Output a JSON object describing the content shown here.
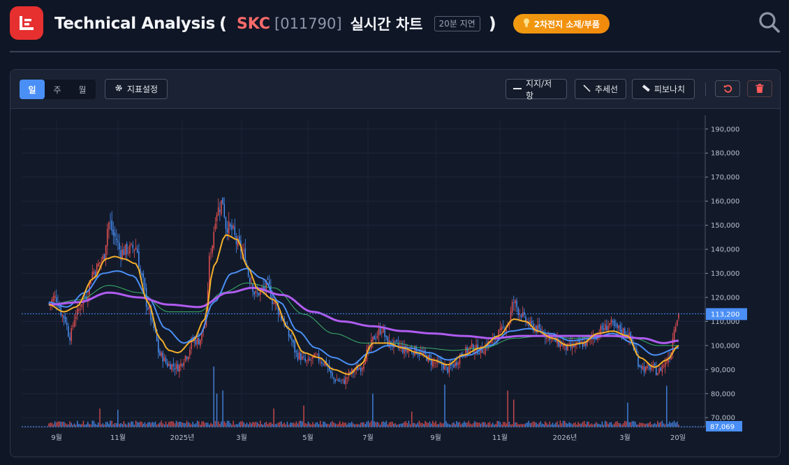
{
  "header": {
    "title": "Technical Analysis",
    "paren_open": "(",
    "ticker": "SKC",
    "code": "[011790]",
    "realtime_label": "실시간 차트",
    "delay_badge": "20분 지연",
    "paren_close": ")",
    "theme_badge": "2차전지 소재/부품",
    "icons": {
      "logo": "chart-logo-icon",
      "theme": "lightbulb-icon",
      "search": "search-icon"
    },
    "colors": {
      "logo": "#e63030",
      "ticker": "#ff6b6b",
      "badge": "#f09a10"
    }
  },
  "toolbar": {
    "periods": [
      {
        "label": "일",
        "active": true
      },
      {
        "label": "주",
        "active": false
      },
      {
        "label": "월",
        "active": false
      }
    ],
    "indicator_settings": "지표설정",
    "support_resistance": "지지/저항",
    "trendline": "추세선",
    "fibonacci": "피보나치",
    "icons": {
      "settings": "gear-icon",
      "support": "horizontal-line-icon",
      "trend": "diagonal-line-icon",
      "fib": "ruler-icon",
      "reset": "undo-icon",
      "delete": "trash-icon"
    }
  },
  "chart_data": {
    "type": "candlestick",
    "y_ticks": [
      "190,000",
      "180,000",
      "170,000",
      "160,000",
      "150,000",
      "140,000",
      "130,000",
      "120,000",
      "110,000",
      "100,000",
      "90,000",
      "80,000",
      "70,000"
    ],
    "ylim": [
      66000,
      194000
    ],
    "x_ticks": [
      "9월",
      "11월",
      "2025년",
      "3월",
      "5월",
      "7월",
      "9월",
      "11월",
      "2026년",
      "3월",
      "20일"
    ],
    "current_price_label": "113,200",
    "current_price": 113200,
    "volume_label": "87,069",
    "price_line_color": "#4a8ff5",
    "up_color": "#e55050",
    "down_color": "#4a8ff5",
    "keypoints": [
      [
        0,
        117500
      ],
      [
        4,
        120000
      ],
      [
        10,
        112000
      ],
      [
        14,
        104000
      ],
      [
        18,
        113000
      ],
      [
        24,
        120000
      ],
      [
        30,
        131000
      ],
      [
        36,
        136000
      ],
      [
        40,
        151000
      ],
      [
        44,
        145000
      ],
      [
        48,
        139000
      ],
      [
        54,
        140000
      ],
      [
        58,
        141000
      ],
      [
        62,
        128000
      ],
      [
        66,
        116000
      ],
      [
        70,
        107000
      ],
      [
        74,
        96000
      ],
      [
        80,
        92000
      ],
      [
        86,
        91000
      ],
      [
        92,
        96000
      ],
      [
        96,
        102000
      ],
      [
        100,
        102000
      ],
      [
        104,
        108000
      ],
      [
        108,
        140000
      ],
      [
        112,
        156000
      ],
      [
        116,
        160000
      ],
      [
        118,
        150000
      ],
      [
        122,
        148000
      ],
      [
        126,
        142000
      ],
      [
        130,
        138000
      ],
      [
        134,
        128000
      ],
      [
        138,
        121000
      ],
      [
        142,
        123000
      ],
      [
        146,
        125000
      ],
      [
        150,
        118000
      ],
      [
        156,
        111000
      ],
      [
        160,
        104000
      ],
      [
        166,
        96000
      ],
      [
        172,
        93000
      ],
      [
        178,
        95000
      ],
      [
        184,
        93000
      ],
      [
        190,
        86000
      ],
      [
        196,
        85000
      ],
      [
        202,
        89000
      ],
      [
        208,
        91000
      ],
      [
        212,
        97000
      ],
      [
        218,
        104000
      ],
      [
        222,
        107000
      ],
      [
        226,
        101000
      ],
      [
        232,
        100000
      ],
      [
        238,
        98000
      ],
      [
        244,
        98000
      ],
      [
        250,
        96000
      ],
      [
        256,
        93000
      ],
      [
        262,
        92000
      ],
      [
        266,
        90000
      ],
      [
        270,
        92000
      ],
      [
        276,
        97000
      ],
      [
        282,
        99000
      ],
      [
        288,
        98000
      ],
      [
        294,
        101000
      ],
      [
        300,
        105000
      ],
      [
        306,
        109000
      ],
      [
        310,
        118000
      ],
      [
        314,
        114000
      ],
      [
        318,
        110000
      ],
      [
        322,
        108000
      ],
      [
        328,
        106000
      ],
      [
        334,
        104000
      ],
      [
        340,
        101000
      ],
      [
        346,
        99000
      ],
      [
        352,
        100000
      ],
      [
        358,
        101000
      ],
      [
        364,
        104000
      ],
      [
        370,
        107000
      ],
      [
        374,
        109000
      ],
      [
        378,
        107000
      ],
      [
        384,
        106000
      ],
      [
        388,
        103000
      ],
      [
        390,
        99000
      ],
      [
        394,
        92000
      ],
      [
        398,
        90000
      ],
      [
        402,
        91000
      ],
      [
        406,
        89000
      ],
      [
        410,
        92000
      ],
      [
        414,
        96000
      ],
      [
        418,
        110000
      ],
      [
        420,
        113200
      ]
    ],
    "ma5": [
      [
        0,
        117000
      ],
      [
        10,
        114000
      ],
      [
        18,
        116000
      ],
      [
        30,
        128000
      ],
      [
        38,
        136000
      ],
      [
        44,
        137000
      ],
      [
        50,
        136000
      ],
      [
        58,
        134000
      ],
      [
        66,
        118000
      ],
      [
        74,
        103000
      ],
      [
        80,
        98000
      ],
      [
        86,
        97000
      ],
      [
        96,
        102000
      ],
      [
        104,
        111000
      ],
      [
        110,
        133000
      ],
      [
        118,
        146000
      ],
      [
        126,
        144000
      ],
      [
        132,
        133000
      ],
      [
        140,
        123000
      ],
      [
        150,
        119000
      ],
      [
        160,
        107000
      ],
      [
        170,
        97000
      ],
      [
        180,
        95000
      ],
      [
        190,
        90000
      ],
      [
        200,
        88000
      ],
      [
        208,
        92000
      ],
      [
        216,
        101000
      ],
      [
        226,
        101000
      ],
      [
        236,
        99000
      ],
      [
        246,
        97000
      ],
      [
        256,
        94000
      ],
      [
        266,
        92000
      ],
      [
        276,
        96000
      ],
      [
        288,
        99000
      ],
      [
        300,
        104000
      ],
      [
        310,
        111000
      ],
      [
        318,
        110000
      ],
      [
        326,
        106000
      ],
      [
        336,
        103000
      ],
      [
        346,
        100000
      ],
      [
        356,
        101000
      ],
      [
        366,
        105000
      ],
      [
        376,
        106000
      ],
      [
        386,
        104000
      ],
      [
        394,
        95000
      ],
      [
        404,
        91000
      ],
      [
        412,
        94000
      ],
      [
        420,
        100000
      ]
    ],
    "ma20": [
      [
        0,
        118000
      ],
      [
        12,
        116000
      ],
      [
        24,
        122000
      ],
      [
        36,
        130000
      ],
      [
        46,
        131000
      ],
      [
        56,
        129000
      ],
      [
        66,
        120000
      ],
      [
        78,
        107000
      ],
      [
        90,
        101000
      ],
      [
        100,
        104000
      ],
      [
        110,
        118000
      ],
      [
        122,
        130000
      ],
      [
        132,
        132000
      ],
      [
        142,
        128000
      ],
      [
        154,
        118000
      ],
      [
        166,
        106000
      ],
      [
        178,
        99000
      ],
      [
        190,
        95000
      ],
      [
        202,
        92000
      ],
      [
        214,
        97000
      ],
      [
        226,
        100000
      ],
      [
        240,
        99000
      ],
      [
        254,
        97000
      ],
      [
        266,
        94000
      ],
      [
        280,
        96000
      ],
      [
        294,
        100000
      ],
      [
        308,
        106000
      ],
      [
        320,
        107000
      ],
      [
        334,
        105000
      ],
      [
        348,
        102000
      ],
      [
        362,
        103000
      ],
      [
        376,
        105000
      ],
      [
        390,
        101000
      ],
      [
        404,
        96000
      ],
      [
        420,
        99000
      ]
    ],
    "ma60": [
      [
        0,
        117000
      ],
      [
        20,
        119000
      ],
      [
        40,
        125000
      ],
      [
        60,
        122000
      ],
      [
        80,
        114000
      ],
      [
        100,
        114000
      ],
      [
        116,
        122000
      ],
      [
        132,
        126000
      ],
      [
        150,
        124000
      ],
      [
        170,
        113000
      ],
      [
        190,
        105000
      ],
      [
        210,
        101000
      ],
      [
        230,
        101000
      ],
      [
        250,
        99000
      ],
      [
        270,
        98000
      ],
      [
        290,
        99000
      ],
      [
        310,
        103000
      ],
      [
        330,
        104000
      ],
      [
        350,
        103000
      ],
      [
        370,
        104000
      ],
      [
        390,
        103000
      ],
      [
        406,
        100000
      ],
      [
        420,
        100000
      ]
    ],
    "ma120": [
      [
        0,
        117000
      ],
      [
        20,
        118000
      ],
      [
        40,
        122000
      ],
      [
        60,
        120000
      ],
      [
        80,
        117000
      ],
      [
        100,
        116000
      ],
      [
        120,
        122000
      ],
      [
        136,
        124000
      ],
      [
        156,
        121000
      ],
      [
        176,
        114000
      ],
      [
        196,
        110000
      ],
      [
        216,
        108000
      ],
      [
        236,
        106000
      ],
      [
        256,
        105000
      ],
      [
        276,
        104000
      ],
      [
        296,
        103000
      ],
      [
        316,
        104000
      ],
      [
        336,
        104000
      ],
      [
        356,
        104000
      ],
      [
        376,
        104000
      ],
      [
        396,
        103000
      ],
      [
        410,
        101000
      ],
      [
        420,
        102000
      ]
    ],
    "volume_spikes": [
      [
        110,
        1.0
      ],
      [
        116,
        0.6
      ],
      [
        112,
        0.55
      ],
      [
        216,
        0.55
      ],
      [
        264,
        0.7
      ],
      [
        306,
        0.6
      ],
      [
        310,
        0.45
      ],
      [
        386,
        0.4
      ],
      [
        412,
        0.68
      ],
      [
        34,
        0.3
      ],
      [
        46,
        0.28
      ],
      [
        150,
        0.3
      ],
      [
        170,
        0.35
      ],
      [
        242,
        0.25
      ]
    ]
  }
}
